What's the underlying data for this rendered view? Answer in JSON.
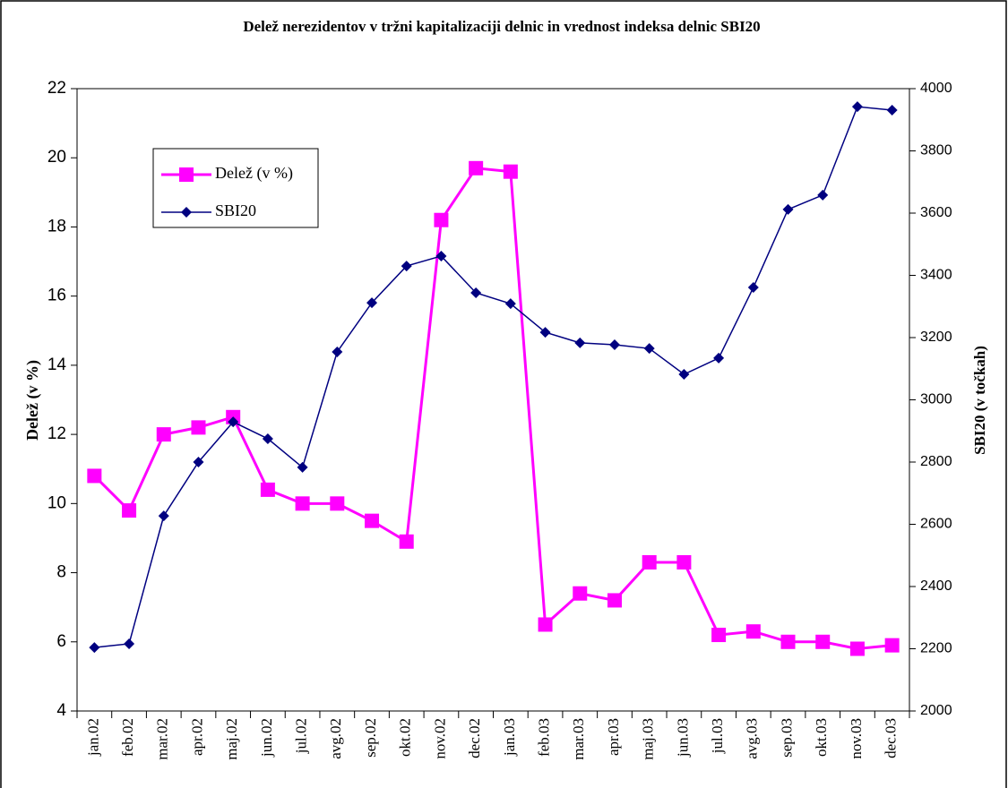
{
  "chart_data": {
    "type": "line",
    "title": "Delež nerezidentov v tržni kapitalizaciji delnic in vrednost indeksa delnic SBI20",
    "ylabel": "Delež (v %)",
    "y2label": "SBI20 (v točkah)",
    "categories": [
      "jan.02",
      "feb.02",
      "mar.02",
      "apr.02",
      "maj.02",
      "jun.02",
      "jul.02",
      "avg.02",
      "sep.02",
      "okt.02",
      "nov.02",
      "dec.02",
      "jan.03",
      "feb.03",
      "mar.03",
      "apr.03",
      "maj.03",
      "jun.03",
      "jul.03",
      "avg.03",
      "sep.03",
      "okt.03",
      "nov.03",
      "dec.03"
    ],
    "series": [
      {
        "name": "Delež (v %)",
        "color": "#ff00ff",
        "marker": "square",
        "values": [
          10.8,
          9.8,
          12.0,
          12.2,
          12.5,
          10.4,
          10.0,
          10.0,
          9.5,
          8.9,
          18.2,
          19.7,
          19.6,
          6.5,
          7.4,
          7.2,
          8.3,
          8.3,
          6.2,
          6.3,
          6.0,
          6.0,
          5.8,
          5.9
        ]
      },
      {
        "name": "SBI20",
        "color": "#000080",
        "marker": "diamond",
        "axis": "y2",
        "values": [
          2204,
          2216,
          2627,
          2800,
          2929,
          2875,
          2783,
          3154,
          3312,
          3430,
          3462,
          3344,
          3309,
          3217,
          3183,
          3177,
          3165,
          3082,
          3134,
          3361,
          3612,
          3658,
          3942,
          3931
        ]
      }
    ],
    "ylim": [
      4,
      22
    ],
    "yticks": [
      4,
      6,
      8,
      10,
      12,
      14,
      16,
      18,
      20,
      22
    ],
    "y2lim": [
      2000,
      4000
    ],
    "y2ticks": [
      2000,
      2200,
      2400,
      2600,
      2800,
      3000,
      3200,
      3400,
      3600,
      3800,
      4000
    ],
    "grid": false
  }
}
